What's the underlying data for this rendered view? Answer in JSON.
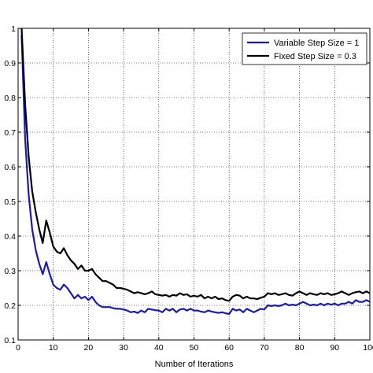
{
  "chart_data": {
    "type": "line",
    "title": "",
    "xlabel": "Number of Iterations",
    "ylabel": "",
    "xlim": [
      0,
      100
    ],
    "ylim": [
      0.1,
      1
    ],
    "x_ticks": [
      0,
      10,
      20,
      30,
      40,
      50,
      60,
      70,
      80,
      90,
      100
    ],
    "x_tick_labels": [
      "0",
      "10",
      "20",
      "30",
      "40",
      "50",
      "60",
      "70",
      "80",
      "90",
      "100"
    ],
    "y_ticks": [
      0.1,
      0.2,
      0.3,
      0.4,
      0.5,
      0.6,
      0.7,
      0.8,
      0.9,
      1
    ],
    "y_tick_labels": [
      "0.1",
      "0.2",
      "0.3",
      "0.4",
      "0.5",
      "0.6",
      "0.7",
      "0.8",
      "0.9",
      "1"
    ],
    "grid": true,
    "legend_position": "top-right",
    "series": [
      {
        "name": "Variable Step Size = 1",
        "color": "#1a1ab4",
        "x": [
          1,
          2,
          3,
          4,
          5,
          6,
          7,
          8,
          9,
          10,
          11,
          12,
          13,
          14,
          15,
          16,
          17,
          18,
          19,
          20,
          21,
          22,
          23,
          24,
          25,
          26,
          27,
          28,
          29,
          30,
          31,
          32,
          33,
          34,
          35,
          36,
          37,
          38,
          39,
          40,
          41,
          42,
          43,
          44,
          45,
          46,
          47,
          48,
          49,
          50,
          51,
          52,
          53,
          54,
          55,
          56,
          57,
          58,
          59,
          60,
          61,
          62,
          63,
          64,
          65,
          66,
          67,
          68,
          69,
          70,
          71,
          72,
          73,
          74,
          75,
          76,
          77,
          78,
          79,
          80,
          81,
          82,
          83,
          84,
          85,
          86,
          87,
          88,
          89,
          90,
          91,
          92,
          93,
          94,
          95,
          96,
          97,
          98,
          99,
          100
        ],
        "values": [
          0.98,
          0.68,
          0.52,
          0.42,
          0.36,
          0.32,
          0.29,
          0.325,
          0.29,
          0.26,
          0.25,
          0.245,
          0.26,
          0.25,
          0.235,
          0.22,
          0.23,
          0.22,
          0.225,
          0.215,
          0.225,
          0.21,
          0.2,
          0.195,
          0.195,
          0.195,
          0.192,
          0.19,
          0.19,
          0.188,
          0.185,
          0.18,
          0.182,
          0.178,
          0.185,
          0.18,
          0.19,
          0.188,
          0.186,
          0.185,
          0.18,
          0.19,
          0.185,
          0.19,
          0.18,
          0.188,
          0.19,
          0.185,
          0.19,
          0.185,
          0.185,
          0.182,
          0.18,
          0.185,
          0.182,
          0.18,
          0.178,
          0.18,
          0.177,
          0.175,
          0.19,
          0.185,
          0.188,
          0.18,
          0.19,
          0.185,
          0.18,
          0.185,
          0.19,
          0.188,
          0.2,
          0.198,
          0.2,
          0.198,
          0.2,
          0.205,
          0.2,
          0.202,
          0.2,
          0.205,
          0.21,
          0.205,
          0.2,
          0.202,
          0.2,
          0.205,
          0.2,
          0.205,
          0.202,
          0.205,
          0.2,
          0.205,
          0.205,
          0.21,
          0.205,
          0.215,
          0.21,
          0.21,
          0.215,
          0.21
        ]
      },
      {
        "name": "Fixed Step Size = 0.3",
        "color": "#000000",
        "x": [
          1,
          2,
          3,
          4,
          5,
          6,
          7,
          8,
          9,
          10,
          11,
          12,
          13,
          14,
          15,
          16,
          17,
          18,
          19,
          20,
          21,
          22,
          23,
          24,
          25,
          26,
          27,
          28,
          29,
          30,
          31,
          32,
          33,
          34,
          35,
          36,
          37,
          38,
          39,
          40,
          41,
          42,
          43,
          44,
          45,
          46,
          47,
          48,
          49,
          50,
          51,
          52,
          53,
          54,
          55,
          56,
          57,
          58,
          59,
          60,
          61,
          62,
          63,
          64,
          65,
          66,
          67,
          68,
          69,
          70,
          71,
          72,
          73,
          74,
          75,
          76,
          77,
          78,
          79,
          80,
          81,
          82,
          83,
          84,
          85,
          86,
          87,
          88,
          89,
          90,
          91,
          92,
          93,
          94,
          95,
          96,
          97,
          98,
          99,
          100
        ],
        "values": [
          1.0,
          0.78,
          0.63,
          0.53,
          0.47,
          0.42,
          0.38,
          0.445,
          0.41,
          0.37,
          0.355,
          0.35,
          0.365,
          0.345,
          0.33,
          0.32,
          0.305,
          0.315,
          0.3,
          0.3,
          0.305,
          0.29,
          0.28,
          0.27,
          0.27,
          0.265,
          0.26,
          0.25,
          0.25,
          0.248,
          0.245,
          0.24,
          0.235,
          0.238,
          0.235,
          0.232,
          0.235,
          0.24,
          0.232,
          0.23,
          0.228,
          0.23,
          0.225,
          0.23,
          0.228,
          0.235,
          0.23,
          0.232,
          0.225,
          0.228,
          0.225,
          0.23,
          0.22,
          0.225,
          0.22,
          0.225,
          0.218,
          0.22,
          0.215,
          0.213,
          0.225,
          0.23,
          0.228,
          0.22,
          0.225,
          0.22,
          0.22,
          0.218,
          0.222,
          0.225,
          0.235,
          0.232,
          0.235,
          0.23,
          0.232,
          0.235,
          0.23,
          0.228,
          0.235,
          0.24,
          0.235,
          0.23,
          0.235,
          0.232,
          0.23,
          0.235,
          0.232,
          0.235,
          0.23,
          0.232,
          0.235,
          0.24,
          0.235,
          0.23,
          0.235,
          0.238,
          0.24,
          0.235,
          0.24,
          0.235
        ]
      }
    ]
  }
}
